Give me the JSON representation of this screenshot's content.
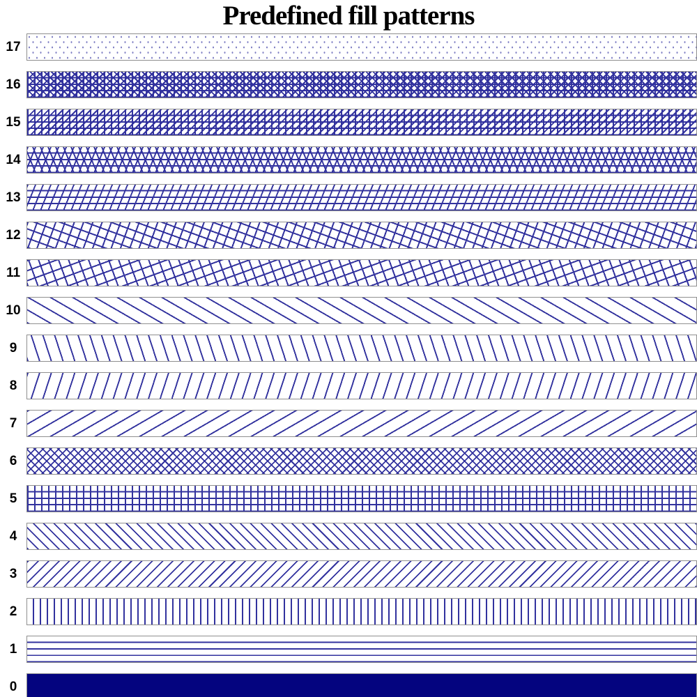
{
  "title": "Predefined fill patterns",
  "colors": {
    "pattern_line": "#32329e",
    "solid_fill": "#04047f",
    "dot": "#8080c4",
    "bar_border": "#8f8f8f",
    "background": "#ffffff",
    "text": "#000000"
  },
  "bars": [
    {
      "label": "17",
      "pattern": "dots",
      "description": "sparse dot fill"
    },
    {
      "label": "16",
      "pattern": "grid-cross",
      "description": "square grid with diagonal cross-hatch"
    },
    {
      "label": "15",
      "pattern": "grid-diag",
      "description": "square grid with forward diagonals"
    },
    {
      "label": "14",
      "pattern": "h-cross",
      "description": "horizontal lines with diagonal cross-hatch (triangle mesh)"
    },
    {
      "label": "13",
      "pattern": "h-diag",
      "description": "horizontal lines with steep forward diagonals"
    },
    {
      "label": "12",
      "pattern": "rot-minus20",
      "description": "square cross-hatch rotated clockwise"
    },
    {
      "label": "11",
      "pattern": "rot-plus20",
      "description": "square cross-hatch rotated counter-clockwise"
    },
    {
      "label": "10",
      "pattern": "bdiag30",
      "description": "shallow backward diagonal lines"
    },
    {
      "label": "9",
      "pattern": "bdiag72",
      "description": "steep backward diagonal lines"
    },
    {
      "label": "8",
      "pattern": "diag72",
      "description": "steep forward diagonal lines"
    },
    {
      "label": "7",
      "pattern": "diag30",
      "description": "shallow forward diagonal lines"
    },
    {
      "label": "6",
      "pattern": "cross45",
      "description": "45-degree diagonal cross-hatch"
    },
    {
      "label": "5",
      "pattern": "grid",
      "description": "horizontal and vertical grid"
    },
    {
      "label": "4",
      "pattern": "bdiag45",
      "description": "45-degree backward diagonal lines"
    },
    {
      "label": "3",
      "pattern": "diag45",
      "description": "45-degree forward diagonal lines"
    },
    {
      "label": "2",
      "pattern": "vlines",
      "description": "vertical lines"
    },
    {
      "label": "1",
      "pattern": "hlines",
      "description": "horizontal lines"
    },
    {
      "label": "0",
      "pattern": "solid",
      "description": "solid fill"
    }
  ],
  "chart_data": {
    "type": "bar",
    "orientation": "horizontal",
    "title": "Predefined fill patterns",
    "categories": [
      17,
      16,
      15,
      14,
      13,
      12,
      11,
      10,
      9,
      8,
      7,
      6,
      5,
      4,
      3,
      2,
      1,
      0
    ],
    "values": [
      1,
      1,
      1,
      1,
      1,
      1,
      1,
      1,
      1,
      1,
      1,
      1,
      1,
      1,
      1,
      1,
      1,
      1
    ],
    "value_note": "all bars span full plot width; each bar demonstrates fill pattern number equal to its category label",
    "xlabel": "",
    "ylabel": "",
    "legend": "none",
    "grid": false
  }
}
